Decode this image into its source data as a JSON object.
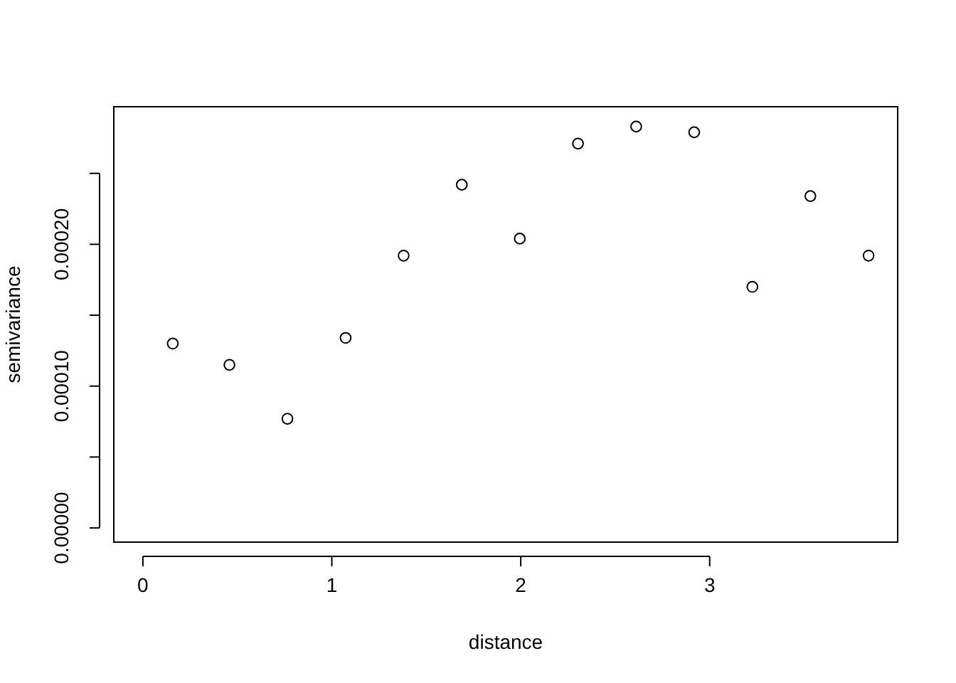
{
  "chart_data": {
    "type": "scatter",
    "xlabel": "distance",
    "ylabel": "semivariance",
    "marker": "circle",
    "grid": false,
    "x": [
      0.158,
      0.458,
      0.765,
      1.073,
      1.38,
      1.688,
      1.995,
      2.303,
      2.611,
      2.918,
      3.226,
      3.533,
      3.841
    ],
    "series": [
      {
        "color": "#000000",
        "values": [
          0.00013,
          0.000115,
          7.7e-05,
          0.000134,
          0.000192,
          0.000242,
          0.000204,
          0.000271,
          0.000283,
          0.000279,
          0.00017,
          0.000234,
          0.000192
        ]
      }
    ],
    "xlim": [
      -0.154,
      3.995
    ],
    "xticks": [
      0,
      1,
      2,
      3
    ],
    "ylim": [
      -1e-05,
      0.000297
    ],
    "yticks": [
      {
        "value": 0,
        "label": "0.00000"
      },
      {
        "value": 5e-05,
        "label": null
      },
      {
        "value": 0.0001,
        "label": "0.00010"
      },
      {
        "value": 0.00015,
        "label": null
      },
      {
        "value": 0.0002,
        "label": "0.00020"
      },
      {
        "value": 0.00025,
        "label": null
      }
    ]
  }
}
